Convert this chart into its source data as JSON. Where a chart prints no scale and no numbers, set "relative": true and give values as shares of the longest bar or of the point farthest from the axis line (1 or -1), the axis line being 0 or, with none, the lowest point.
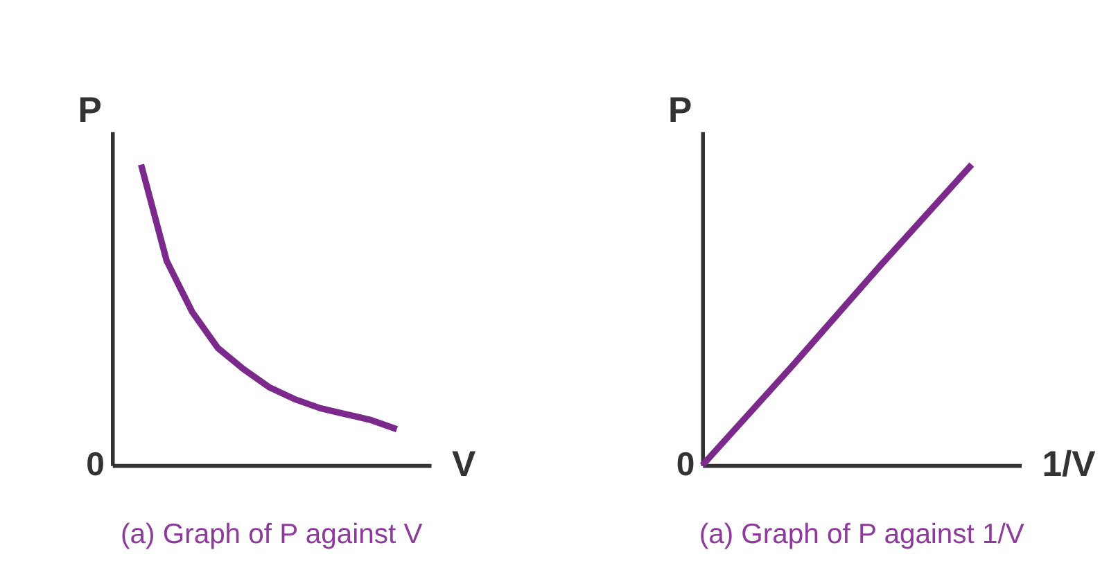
{
  "chart_data": [
    {
      "type": "line",
      "title": "(a) Graph of P against V",
      "ylabel": "P",
      "xlabel": "V",
      "annotations": [
        "0"
      ],
      "relative": true,
      "categories": [
        null,
        null,
        null,
        null,
        null,
        null,
        null,
        null,
        null,
        null,
        null
      ],
      "series": [
        {
          "color": "#7b2a8c",
          "values": [
            1,
            0.68,
            0.51,
            0.39,
            0.32,
            0.26,
            0.22,
            0.19,
            0.17,
            0.15,
            0.12
          ]
        }
      ],
      "grid": false,
      "legend": false,
      "tick_labels": false,
      "marker": "none",
      "line_style": "solid"
    },
    {
      "type": "line",
      "title": "(a) Graph of P against 1/V",
      "ylabel": "P",
      "xlabel": "1/V",
      "annotations": [
        "0"
      ],
      "relative": true,
      "categories": [
        null,
        null,
        null,
        null
      ],
      "series": [
        {
          "color": "#7b2a8c",
          "values": [
            0,
            0.33,
            0.67,
            1
          ]
        }
      ],
      "grid": false,
      "legend": false,
      "tick_labels": false,
      "marker": "none",
      "line_style": "solid"
    }
  ]
}
